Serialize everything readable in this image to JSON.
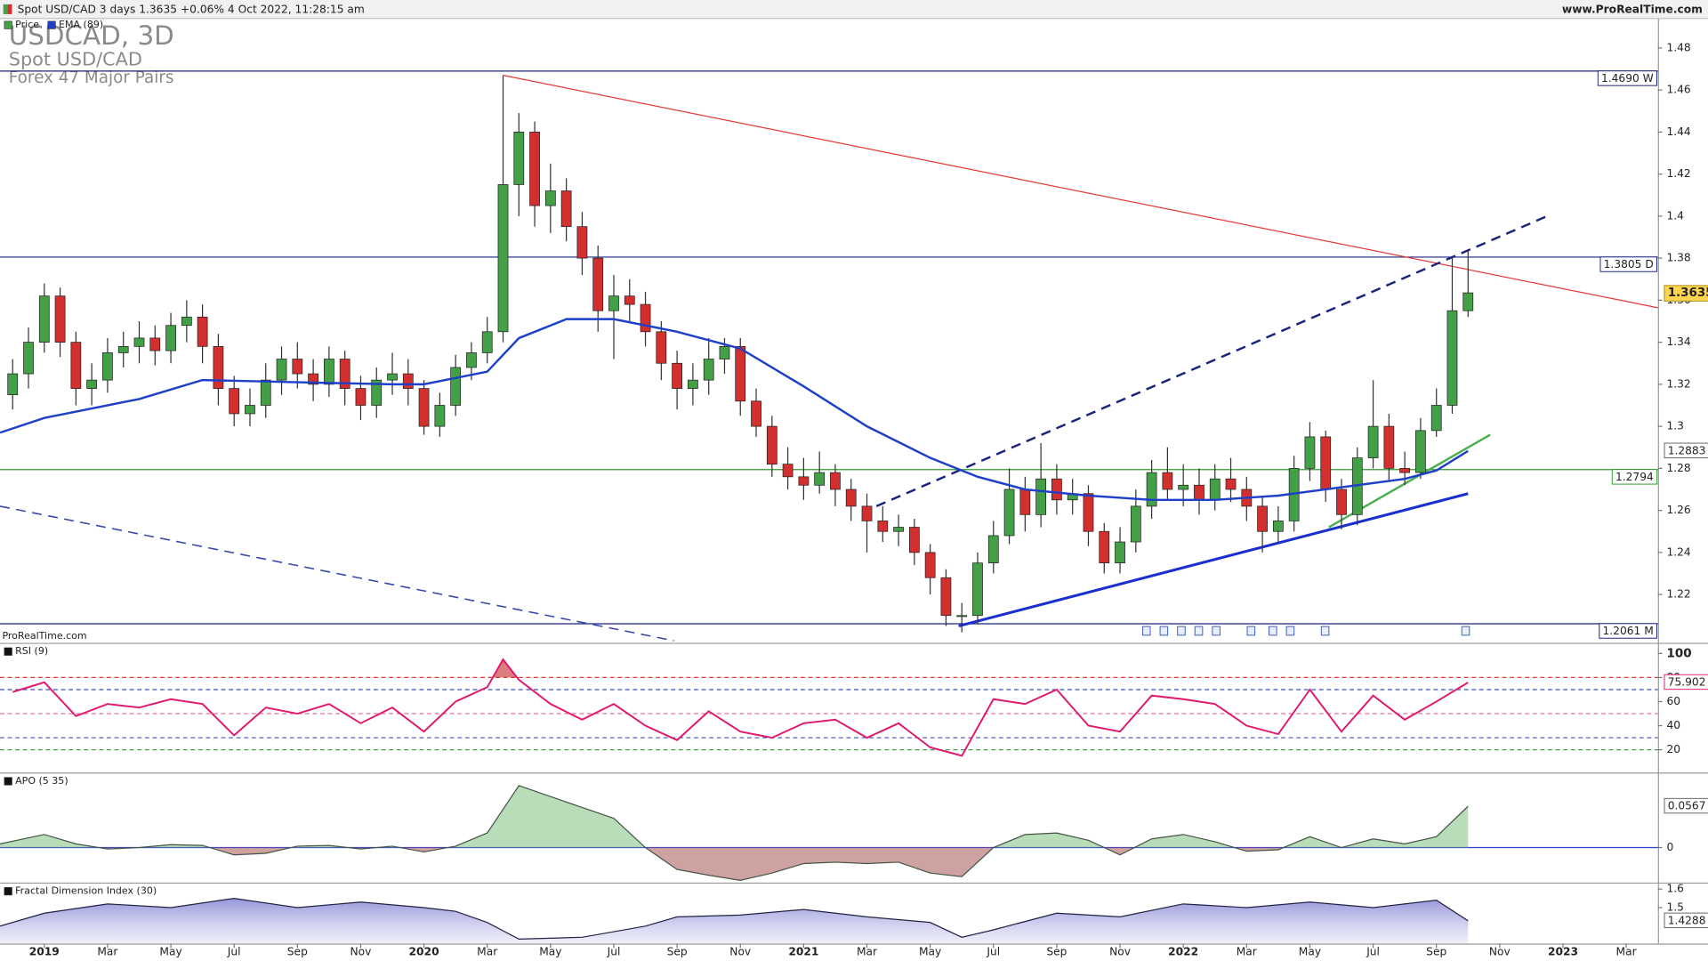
{
  "header": {
    "title": "Spot USD/CAD 3 days 1.3635 +0.06% 4 Oct 2022, 11:28:15 am",
    "site": "www.ProRealTime.com"
  },
  "chart_data": [
    {
      "type": "candlestick",
      "title": "USDCAD, 3D",
      "subtitle": "Spot USD/CAD",
      "market": "Forex 47 Major Pairs",
      "source": "ProRealTime.com",
      "xlim": [
        -1.4,
        51
      ],
      "xticks": [
        {
          "value": 0,
          "label": "2019"
        },
        {
          "value": 2,
          "label": "Mar"
        },
        {
          "value": 4,
          "label": "May"
        },
        {
          "value": 6,
          "label": "Jul"
        },
        {
          "value": 8,
          "label": "Sep"
        },
        {
          "value": 10,
          "label": "Nov"
        },
        {
          "value": 12,
          "label": "2020"
        },
        {
          "value": 14,
          "label": "Mar"
        },
        {
          "value": 16,
          "label": "May"
        },
        {
          "value": 18,
          "label": "Jul"
        },
        {
          "value": 20,
          "label": "Sep"
        },
        {
          "value": 22,
          "label": "Nov"
        },
        {
          "value": 24,
          "label": "2021"
        },
        {
          "value": 26,
          "label": "Mar"
        },
        {
          "value": 28,
          "label": "May"
        },
        {
          "value": 30,
          "label": "Jul"
        },
        {
          "value": 32,
          "label": "Sep"
        },
        {
          "value": 34,
          "label": "Nov"
        },
        {
          "value": 36,
          "label": "2022"
        },
        {
          "value": 38,
          "label": "Mar"
        },
        {
          "value": 40,
          "label": "May"
        },
        {
          "value": 42,
          "label": "Jul"
        },
        {
          "value": 44,
          "label": "Sep"
        },
        {
          "value": 46,
          "label": "Nov"
        },
        {
          "value": 48,
          "label": "2023"
        },
        {
          "value": 50,
          "label": "Mar"
        }
      ],
      "ylim": [
        1.197,
        1.494
      ],
      "yticks": [
        1.22,
        1.24,
        1.26,
        1.28,
        1.3,
        1.32,
        1.34,
        1.36,
        1.38,
        1.4,
        1.42,
        1.44,
        1.46,
        1.48
      ],
      "series": [
        {
          "name": "Price",
          "color": "#43a047",
          "down_color": "#d32f2f",
          "tag_fill": "#ffd54f",
          "x": [
            -1,
            -0.5,
            0,
            0.5,
            1,
            1.5,
            2,
            2.5,
            3,
            3.5,
            4,
            4.5,
            5,
            5.5,
            6,
            6.5,
            7,
            7.5,
            8,
            8.5,
            9,
            9.5,
            10,
            10.5,
            11,
            11.5,
            12,
            12.5,
            13,
            13.5,
            14,
            14.5,
            15,
            15.5,
            16,
            16.5,
            17,
            17.5,
            18,
            18.5,
            19,
            19.5,
            20,
            20.5,
            21,
            21.5,
            22,
            22.5,
            23,
            23.5,
            24,
            24.5,
            25,
            25.5,
            26,
            26.5,
            27,
            27.5,
            28,
            28.5,
            29,
            29.5,
            30,
            30.5,
            31,
            31.5,
            32,
            32.5,
            33,
            33.5,
            34,
            34.5,
            35,
            35.5,
            36,
            36.5,
            37,
            37.5,
            38,
            38.5,
            39,
            39.5,
            40,
            40.5,
            41,
            41.5,
            42,
            42.5,
            43,
            43.5,
            44,
            44.5,
            45
          ],
          "open": [
            1.315,
            1.325,
            1.34,
            1.362,
            1.34,
            1.318,
            1.322,
            1.335,
            1.338,
            1.342,
            1.336,
            1.348,
            1.352,
            1.338,
            1.318,
            1.306,
            1.31,
            1.322,
            1.332,
            1.325,
            1.32,
            1.332,
            1.318,
            1.31,
            1.322,
            1.325,
            1.318,
            1.3,
            1.31,
            1.328,
            1.335,
            1.345,
            1.415,
            1.44,
            1.405,
            1.412,
            1.395,
            1.38,
            1.355,
            1.362,
            1.358,
            1.345,
            1.33,
            1.318,
            1.322,
            1.332,
            1.338,
            1.312,
            1.3,
            1.282,
            1.276,
            1.272,
            1.278,
            1.27,
            1.262,
            1.255,
            1.25,
            1.252,
            1.24,
            1.228,
            1.21,
            1.21,
            1.235,
            1.248,
            1.27,
            1.258,
            1.275,
            1.265,
            1.268,
            1.25,
            1.235,
            1.245,
            1.262,
            1.278,
            1.27,
            1.272,
            1.265,
            1.275,
            1.27,
            1.262,
            1.25,
            1.255,
            1.28,
            1.295,
            1.27,
            1.258,
            1.285,
            1.3,
            1.28,
            1.278,
            1.298,
            1.31,
            1.355
          ],
          "high": [
            1.332,
            1.347,
            1.368,
            1.366,
            1.345,
            1.33,
            1.342,
            1.345,
            1.35,
            1.348,
            1.354,
            1.36,
            1.358,
            1.344,
            1.324,
            1.318,
            1.33,
            1.338,
            1.34,
            1.332,
            1.338,
            1.336,
            1.324,
            1.328,
            1.335,
            1.332,
            1.322,
            1.316,
            1.334,
            1.34,
            1.352,
            1.467,
            1.449,
            1.445,
            1.425,
            1.418,
            1.402,
            1.386,
            1.372,
            1.37,
            1.364,
            1.35,
            1.336,
            1.33,
            1.342,
            1.342,
            1.342,
            1.318,
            1.305,
            1.29,
            1.285,
            1.288,
            1.282,
            1.275,
            1.268,
            1.262,
            1.258,
            1.256,
            1.244,
            1.232,
            1.216,
            1.24,
            1.255,
            1.28,
            1.276,
            1.292,
            1.282,
            1.275,
            1.272,
            1.254,
            1.252,
            1.27,
            1.284,
            1.29,
            1.282,
            1.28,
            1.282,
            1.285,
            1.276,
            1.266,
            1.262,
            1.286,
            1.302,
            1.298,
            1.275,
            1.29,
            1.322,
            1.306,
            1.288,
            1.304,
            1.318,
            1.38,
            1.384
          ],
          "low": [
            1.308,
            1.318,
            1.335,
            1.333,
            1.31,
            1.31,
            1.316,
            1.328,
            1.33,
            1.329,
            1.33,
            1.34,
            1.33,
            1.31,
            1.3,
            1.3,
            1.304,
            1.315,
            1.318,
            1.312,
            1.314,
            1.31,
            1.303,
            1.304,
            1.315,
            1.31,
            1.296,
            1.295,
            1.305,
            1.322,
            1.33,
            1.34,
            1.4,
            1.395,
            1.392,
            1.388,
            1.372,
            1.345,
            1.332,
            1.35,
            1.338,
            1.322,
            1.308,
            1.31,
            1.315,
            1.325,
            1.305,
            1.295,
            1.276,
            1.27,
            1.265,
            1.268,
            1.262,
            1.255,
            1.24,
            1.245,
            1.243,
            1.234,
            1.22,
            1.205,
            1.202,
            1.206,
            1.23,
            1.244,
            1.25,
            1.252,
            1.258,
            1.258,
            1.243,
            1.23,
            1.23,
            1.24,
            1.256,
            1.265,
            1.262,
            1.258,
            1.26,
            1.264,
            1.255,
            1.24,
            1.245,
            1.25,
            1.274,
            1.264,
            1.251,
            1.253,
            1.28,
            1.274,
            1.272,
            1.275,
            1.295,
            1.306,
            1.352
          ],
          "close": [
            1.325,
            1.34,
            1.362,
            1.34,
            1.318,
            1.322,
            1.335,
            1.338,
            1.342,
            1.336,
            1.348,
            1.352,
            1.338,
            1.318,
            1.306,
            1.31,
            1.322,
            1.332,
            1.325,
            1.32,
            1.332,
            1.318,
            1.31,
            1.322,
            1.325,
            1.318,
            1.3,
            1.31,
            1.328,
            1.335,
            1.345,
            1.415,
            1.44,
            1.405,
            1.412,
            1.395,
            1.38,
            1.355,
            1.362,
            1.358,
            1.345,
            1.33,
            1.318,
            1.322,
            1.332,
            1.338,
            1.312,
            1.3,
            1.282,
            1.276,
            1.272,
            1.278,
            1.27,
            1.262,
            1.255,
            1.25,
            1.252,
            1.24,
            1.228,
            1.21,
            1.21,
            1.235,
            1.248,
            1.27,
            1.258,
            1.275,
            1.265,
            1.268,
            1.25,
            1.235,
            1.245,
            1.262,
            1.278,
            1.27,
            1.272,
            1.265,
            1.275,
            1.27,
            1.262,
            1.25,
            1.255,
            1.28,
            1.295,
            1.27,
            1.258,
            1.285,
            1.3,
            1.28,
            1.278,
            1.298,
            1.31,
            1.355,
            1.3635
          ]
        },
        {
          "name": "EMA (89)",
          "color": "#1e40c8",
          "x": [
            -1.4,
            0,
            3,
            5,
            8,
            11,
            12,
            14,
            15,
            16.5,
            18,
            20,
            22,
            24,
            26,
            28,
            29.5,
            31,
            33,
            35,
            37,
            39,
            41,
            43,
            44,
            45
          ],
          "values": [
            1.297,
            1.304,
            1.313,
            1.322,
            1.321,
            1.32,
            1.32,
            1.326,
            1.342,
            1.351,
            1.351,
            1.345,
            1.337,
            1.319,
            1.3,
            1.285,
            1.276,
            1.27,
            1.267,
            1.265,
            1.265,
            1.267,
            1.271,
            1.275,
            1.279,
            1.2883
          ]
        }
      ],
      "levels": [
        {
          "value": 1.469,
          "label": "1.4690 W",
          "color": "#1a237e"
        },
        {
          "value": 1.3805,
          "label": "1.3805 D",
          "color": "#1a237e"
        },
        {
          "value": 1.2794,
          "label": "1.2794",
          "color": "#2e9e2e"
        },
        {
          "value": 1.2061,
          "label": "1.2061 M",
          "color": "#1a237e"
        }
      ],
      "lines": [
        {
          "x": [
            14.5,
            51
          ],
          "y": [
            1.467,
            1.3564
          ],
          "color": "#e53935",
          "width": 1
        },
        {
          "x": [
            26.3,
            47.5
          ],
          "y": [
            1.262,
            1.4
          ],
          "color": "#1a237e",
          "width": 2,
          "dash": true
        },
        {
          "x": [
            -1.4,
            19.9
          ],
          "y": [
            1.262,
            1.198
          ],
          "color": "#3949ab",
          "width": 1.3,
          "dash": true
        },
        {
          "x": [
            28.9,
            45
          ],
          "y": [
            1.205,
            1.268
          ],
          "color": "#1a2fcf",
          "width": 2.5
        },
        {
          "x": [
            40.6,
            45.7
          ],
          "y": [
            1.252,
            1.296
          ],
          "color": "#4caf50",
          "width": 2
        }
      ]
    },
    {
      "type": "line",
      "ylim": [
        2,
        107
      ],
      "yticks": [
        20,
        40,
        60,
        80,
        100
      ],
      "overbought": {
        "value": 80,
        "color": "#c62828"
      },
      "series": [
        {
          "name": "RSI (9)",
          "color": "#e0196e",
          "x": [
            -1,
            0,
            1,
            2,
            3,
            4,
            5,
            6,
            7,
            8,
            9,
            10,
            11,
            12,
            13,
            14,
            14.5,
            15,
            16,
            17,
            18,
            19,
            20,
            21,
            22,
            23,
            24,
            25,
            26,
            27,
            28,
            29,
            30,
            31,
            32,
            33,
            34,
            35,
            36,
            37,
            38,
            39,
            40,
            41,
            42,
            43,
            44,
            45
          ],
          "values": [
            68,
            76,
            48,
            58,
            55,
            62,
            58,
            32,
            55,
            50,
            58,
            42,
            55,
            35,
            60,
            72,
            95,
            78,
            58,
            45,
            58,
            40,
            28,
            52,
            35,
            30,
            42,
            45,
            30,
            42,
            22,
            15,
            62,
            58,
            70,
            40,
            35,
            65,
            62,
            58,
            40,
            33,
            70,
            35,
            65,
            45,
            60,
            75.902
          ]
        }
      ],
      "levels": [
        {
          "value": 80,
          "color": "#e53935",
          "dash": true
        },
        {
          "value": 70,
          "color": "#3f51b5",
          "dash": true
        },
        {
          "value": 50,
          "color": "#e57399",
          "dash": true
        },
        {
          "value": 30,
          "color": "#3f51b5",
          "dash": true
        },
        {
          "value": 20,
          "color": "#43a047",
          "dash": true
        }
      ]
    },
    {
      "type": "area",
      "ylim": [
        -0.048,
        0.1
      ],
      "yticks": [
        0
      ],
      "up_fill": "#7fbf7f",
      "down_fill": "#a85555",
      "series": [
        {
          "name": "APO (5 35)",
          "color": "#445544",
          "x": [
            -1.4,
            0,
            1,
            2,
            3,
            4,
            5,
            6,
            7,
            8,
            9,
            10,
            11,
            12,
            13,
            14,
            15,
            16,
            17,
            18,
            19,
            20,
            21,
            22,
            23,
            24,
            25,
            26,
            27,
            28,
            29,
            30,
            31,
            32,
            33,
            34,
            35,
            36,
            37,
            38,
            39,
            40,
            41,
            42,
            43,
            44,
            45
          ],
          "values": [
            0.005,
            0.018,
            0.005,
            -0.002,
            0,
            0.004,
            0.003,
            -0.01,
            -0.008,
            0.002,
            0.003,
            -0.002,
            0.002,
            -0.006,
            0.002,
            0.02,
            0.085,
            0.07,
            0.055,
            0.04,
            0,
            -0.03,
            -0.038,
            -0.045,
            -0.035,
            -0.022,
            -0.02,
            -0.022,
            -0.02,
            -0.035,
            -0.04,
            0,
            0.018,
            0.02,
            0.01,
            -0.01,
            0.012,
            0.018,
            0.008,
            -0.005,
            -0.003,
            0.015,
            0,
            0.012,
            0.005,
            0.015,
            0.0567
          ]
        }
      ],
      "levels": [
        {
          "value": 0,
          "color": "#2c3ed6"
        }
      ]
    },
    {
      "type": "area",
      "ylim": [
        1.306,
        1.6235
      ],
      "yticks": [
        1.5,
        1.6
      ],
      "up_fill": "#9c9cdc",
      "series": [
        {
          "name": "Fractal Dimension Index (30)",
          "color": "#222244",
          "x": [
            -1.4,
            0,
            2,
            4,
            6,
            8,
            10,
            12,
            13,
            14,
            15,
            17,
            19,
            20,
            22,
            24,
            26,
            28,
            29,
            30,
            32,
            34,
            36,
            38,
            40,
            42,
            44,
            45
          ],
          "values": [
            1.4,
            1.47,
            1.52,
            1.5,
            1.55,
            1.5,
            1.53,
            1.5,
            1.48,
            1.42,
            1.33,
            1.34,
            1.4,
            1.45,
            1.46,
            1.49,
            1.45,
            1.42,
            1.34,
            1.38,
            1.47,
            1.45,
            1.52,
            1.5,
            1.53,
            1.5,
            1.54,
            1.4288
          ]
        }
      ]
    }
  ]
}
